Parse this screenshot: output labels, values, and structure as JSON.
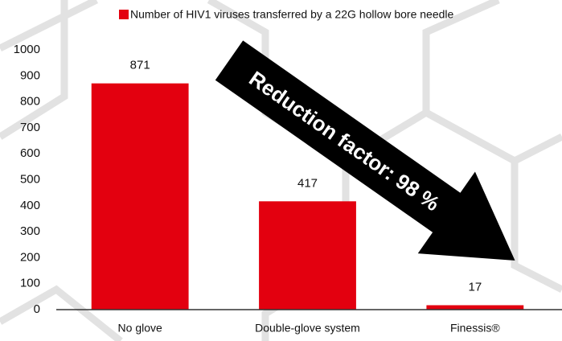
{
  "chart_data": {
    "type": "bar",
    "categories": [
      "No glove",
      "Double-glove system",
      "Finessis®"
    ],
    "series": [
      {
        "name": "Number of HIV1 viruses transferred by a 22G hollow bore needle",
        "color": "#e3000f",
        "values": [
          871,
          417,
          17
        ]
      }
    ],
    "ylim": [
      0,
      1000
    ],
    "yticks": [
      0,
      100,
      200,
      300,
      400,
      500,
      600,
      700,
      800,
      900,
      1000
    ],
    "grid": false,
    "legend": "top",
    "annotation": "Reduction factor: 98 %"
  }
}
